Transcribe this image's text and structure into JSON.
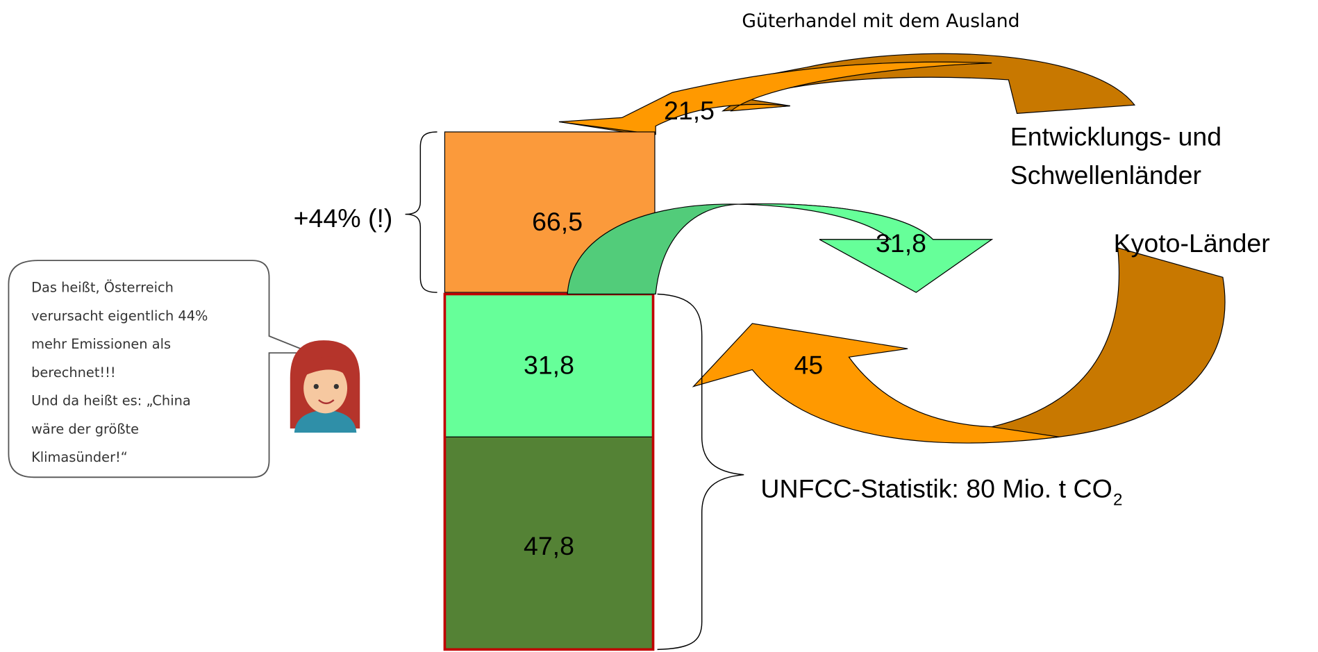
{
  "title": "Güterhandel mit dem Ausland",
  "labels": {
    "developing": [
      "Entwicklungs- und",
      "Schwellenländer"
    ],
    "kyoto": "Kyoto-Länder",
    "increase": "+44% (!)",
    "unfccc": "UNFCC-Statistik: 80 Mio. t CO",
    "unfccc_sub": "2"
  },
  "boxes": [
    "66,5",
    "31,8",
    "47,8"
  ],
  "arrows": [
    "21,5",
    "31,8",
    "45"
  ],
  "bubble": [
    "Das heißt, Österreich",
    "verursacht eigentlich 44%",
    "mehr Emissionen als",
    "berechnet!!!",
    "Und da heißt es: „China",
    "wäre der größte",
    "Klimasünder!“"
  ]
}
